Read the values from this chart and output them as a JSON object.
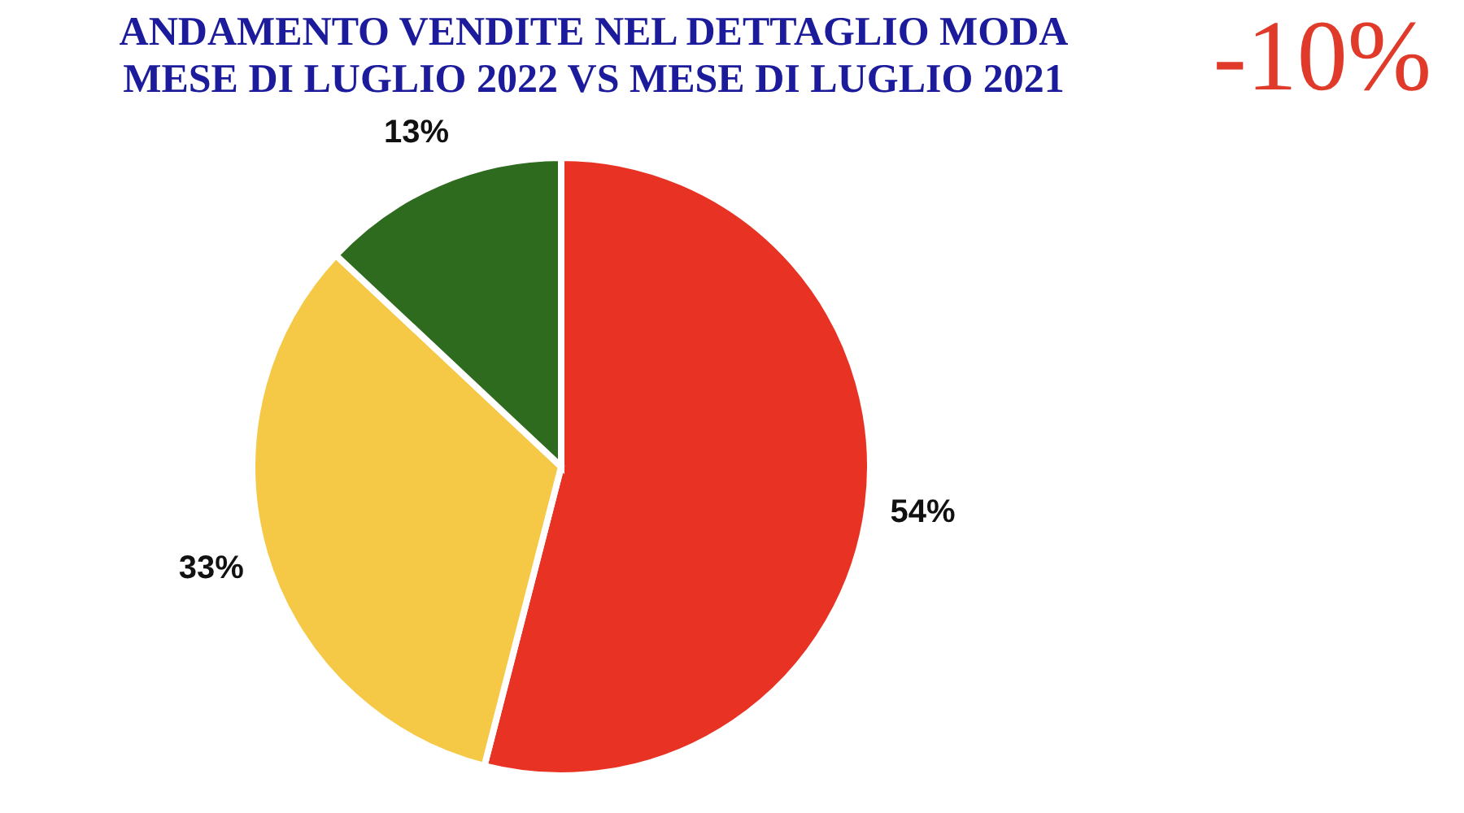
{
  "chart_data": {
    "type": "pie",
    "title": "ANDAMENTO VENDITE NEL DETTAGLIO MODA",
    "subtitle": "MESE DI LUGLIO 2022 VS MESE DI LUGLIO 2021",
    "categories": [
      null,
      null,
      null
    ],
    "values": [
      54,
      33,
      13
    ],
    "colors": [
      "#e83324",
      "#f5c945",
      "#2e6b1e"
    ],
    "value_labels": [
      "54%",
      "33%",
      "13%"
    ],
    "annotations": [
      "-10%"
    ]
  }
}
